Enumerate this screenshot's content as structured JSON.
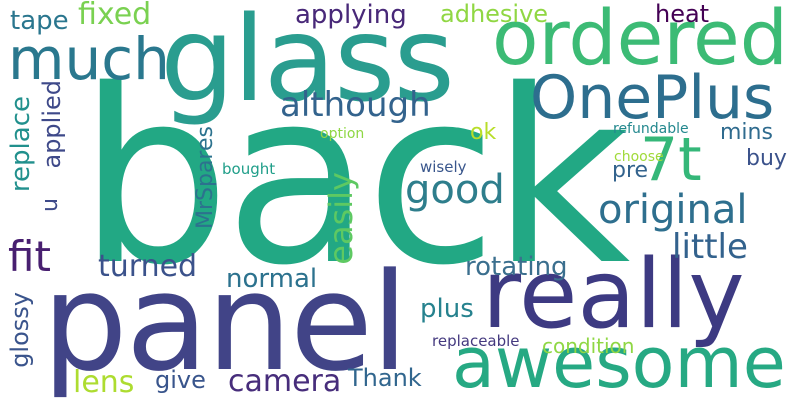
{
  "words": [
    {
      "text": "back",
      "color": "#22a884"
    },
    {
      "text": "panel",
      "color": "#414487"
    },
    {
      "text": "glass",
      "color": "#2a9d8f"
    },
    {
      "text": "really",
      "color": "#3d3a82"
    },
    {
      "text": "awesome",
      "color": "#26a983"
    },
    {
      "text": "ordered",
      "color": "#3cbb75"
    },
    {
      "text": "OnePlus",
      "color": "#2d6e8e"
    },
    {
      "text": "much",
      "color": "#2a788e"
    },
    {
      "text": "7t",
      "color": "#35b779"
    },
    {
      "text": "original",
      "color": "#2e6f8e"
    },
    {
      "text": "good",
      "color": "#2e7e8c"
    },
    {
      "text": "although",
      "color": "#33638d"
    },
    {
      "text": "fit",
      "color": "#481f70"
    },
    {
      "text": "easily",
      "color": "#5ec962"
    },
    {
      "text": "little",
      "color": "#33628d"
    },
    {
      "text": "turned",
      "color": "#3b528b"
    },
    {
      "text": "rotating",
      "color": "#3b6f8e"
    },
    {
      "text": "normal",
      "color": "#2c728e"
    },
    {
      "text": "camera",
      "color": "#472d7b"
    },
    {
      "text": "lens",
      "color": "#addc30"
    },
    {
      "text": "give",
      "color": "#39558c"
    },
    {
      "text": "Thank",
      "color": "#31668e"
    },
    {
      "text": "plus",
      "color": "#26828e"
    },
    {
      "text": "condition",
      "color": "#8fd744"
    },
    {
      "text": "replaceable",
      "color": "#44397f"
    },
    {
      "text": "glossy",
      "color": "#3a548c"
    },
    {
      "text": "fixed",
      "color": "#7ad151"
    },
    {
      "text": "tape",
      "color": "#2a768e"
    },
    {
      "text": "applying",
      "color": "#482878"
    },
    {
      "text": "adhesive",
      "color": "#90d743"
    },
    {
      "text": "heat",
      "color": "#440154"
    },
    {
      "text": "replace",
      "color": "#21908d"
    },
    {
      "text": "applied",
      "color": "#3e4989"
    },
    {
      "text": "u",
      "color": "#3e4a89"
    },
    {
      "text": "MrSpares",
      "color": "#2c728e"
    },
    {
      "text": "option",
      "color": "#8fd744"
    },
    {
      "text": "ok",
      "color": "#b8de29"
    },
    {
      "text": "refundable",
      "color": "#23888e"
    },
    {
      "text": "mins",
      "color": "#2f6b8e"
    },
    {
      "text": "choose",
      "color": "#a0da39"
    },
    {
      "text": "buy",
      "color": "#3b528b"
    },
    {
      "text": "pre",
      "color": "#33638d"
    },
    {
      "text": "bought",
      "color": "#1f9e89"
    },
    {
      "text": "wisely",
      "color": "#39568c"
    }
  ]
}
